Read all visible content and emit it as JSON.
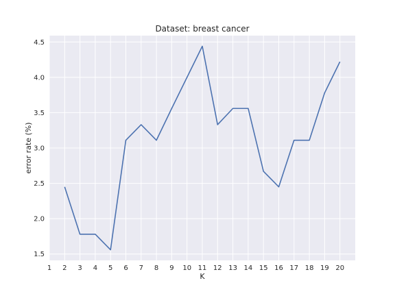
{
  "chart_data": {
    "type": "line",
    "title": "Dataset: breast cancer",
    "xlabel": "K",
    "ylabel": "error rate (%)",
    "xlim": [
      1,
      21
    ],
    "ylim": [
      1.41,
      4.59
    ],
    "xticks": [
      1,
      2,
      3,
      4,
      5,
      6,
      7,
      8,
      9,
      10,
      11,
      12,
      13,
      14,
      15,
      16,
      17,
      18,
      19,
      20
    ],
    "yticks": [
      "1.5",
      "2.0",
      "2.5",
      "3.0",
      "3.5",
      "4.0",
      "4.5"
    ],
    "grid": true,
    "background": "#eaeaf2",
    "series": [
      {
        "color": "#4c72b0",
        "x": [
          2,
          3,
          4,
          5,
          6,
          7,
          8,
          9,
          10,
          11,
          12,
          13,
          14,
          15,
          16,
          17,
          18,
          19,
          20
        ],
        "y": [
          2.45,
          1.78,
          1.78,
          1.56,
          3.11,
          3.33,
          3.11,
          3.56,
          4.0,
          4.44,
          3.33,
          3.56,
          3.56,
          2.67,
          2.45,
          3.11,
          3.11,
          3.78,
          4.22
        ]
      }
    ]
  }
}
